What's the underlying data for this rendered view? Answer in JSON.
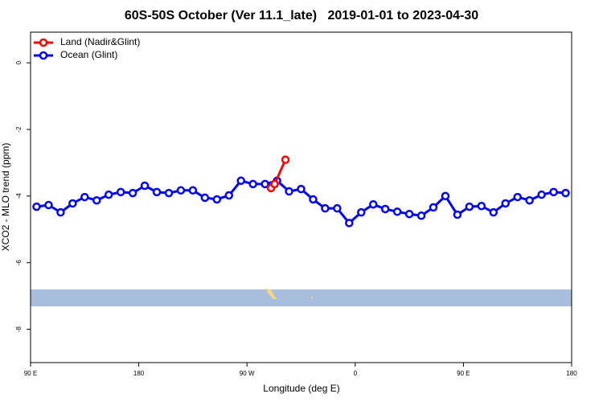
{
  "chart_data": {
    "type": "line",
    "title": "60S-50S October (Ver 11.1_late)   2019-01-01 to 2023-04-30",
    "xlabel": "Longitude (deg E)",
    "ylabel": "XCO2 - MLO trend (ppm)",
    "xlim": [
      90,
      540
    ],
    "ylim": [
      -9,
      0.92
    ],
    "xticks": [
      {
        "value": 90,
        "label": "90 E"
      },
      180,
      {
        "value": 270,
        "label": "90 W"
      },
      {
        "value": 360,
        "label": "0"
      },
      {
        "value": 450,
        "label": "90 E"
      },
      {
        "value": 540,
        "label": "180"
      }
    ],
    "yticks": [
      0,
      -2,
      -4,
      -6,
      -8
    ],
    "legend": "top-left",
    "series": [
      {
        "name": "Land (Nadir&Glint)",
        "color": "#ff0000",
        "x": [
          290,
          293,
          302
        ],
        "values": [
          -3.76,
          -3.64,
          -2.91
        ]
      },
      {
        "name": "Ocean (Glint)",
        "color": "#0000ff",
        "x": [
          95,
          105,
          115,
          125,
          135,
          145,
          155,
          165,
          175,
          185,
          195,
          205,
          215,
          225,
          235,
          245,
          255,
          265,
          275,
          285,
          295,
          305,
          315,
          325,
          335,
          345,
          355,
          365,
          375,
          385,
          395,
          405,
          415,
          425,
          435,
          445,
          455,
          465,
          475,
          485,
          495,
          505,
          515,
          525,
          535
        ],
        "values": [
          -4.32,
          -4.27,
          -4.49,
          -4.22,
          -4.03,
          -4.13,
          -3.96,
          -3.88,
          -3.91,
          -3.69,
          -3.88,
          -3.91,
          -3.83,
          -3.83,
          -4.05,
          -4.1,
          -3.98,
          -3.54,
          -3.64,
          -3.64,
          -3.54,
          -3.86,
          -3.79,
          -4.1,
          -4.37,
          -4.37,
          -4.81,
          -4.49,
          -4.25,
          -4.39,
          -4.47,
          -4.54,
          -4.59,
          -4.34,
          -4.0,
          -4.56,
          -4.32,
          -4.3,
          -4.49,
          -4.22,
          -4.03,
          -4.13,
          -3.96,
          -3.88,
          -3.91
        ]
      }
    ]
  }
}
